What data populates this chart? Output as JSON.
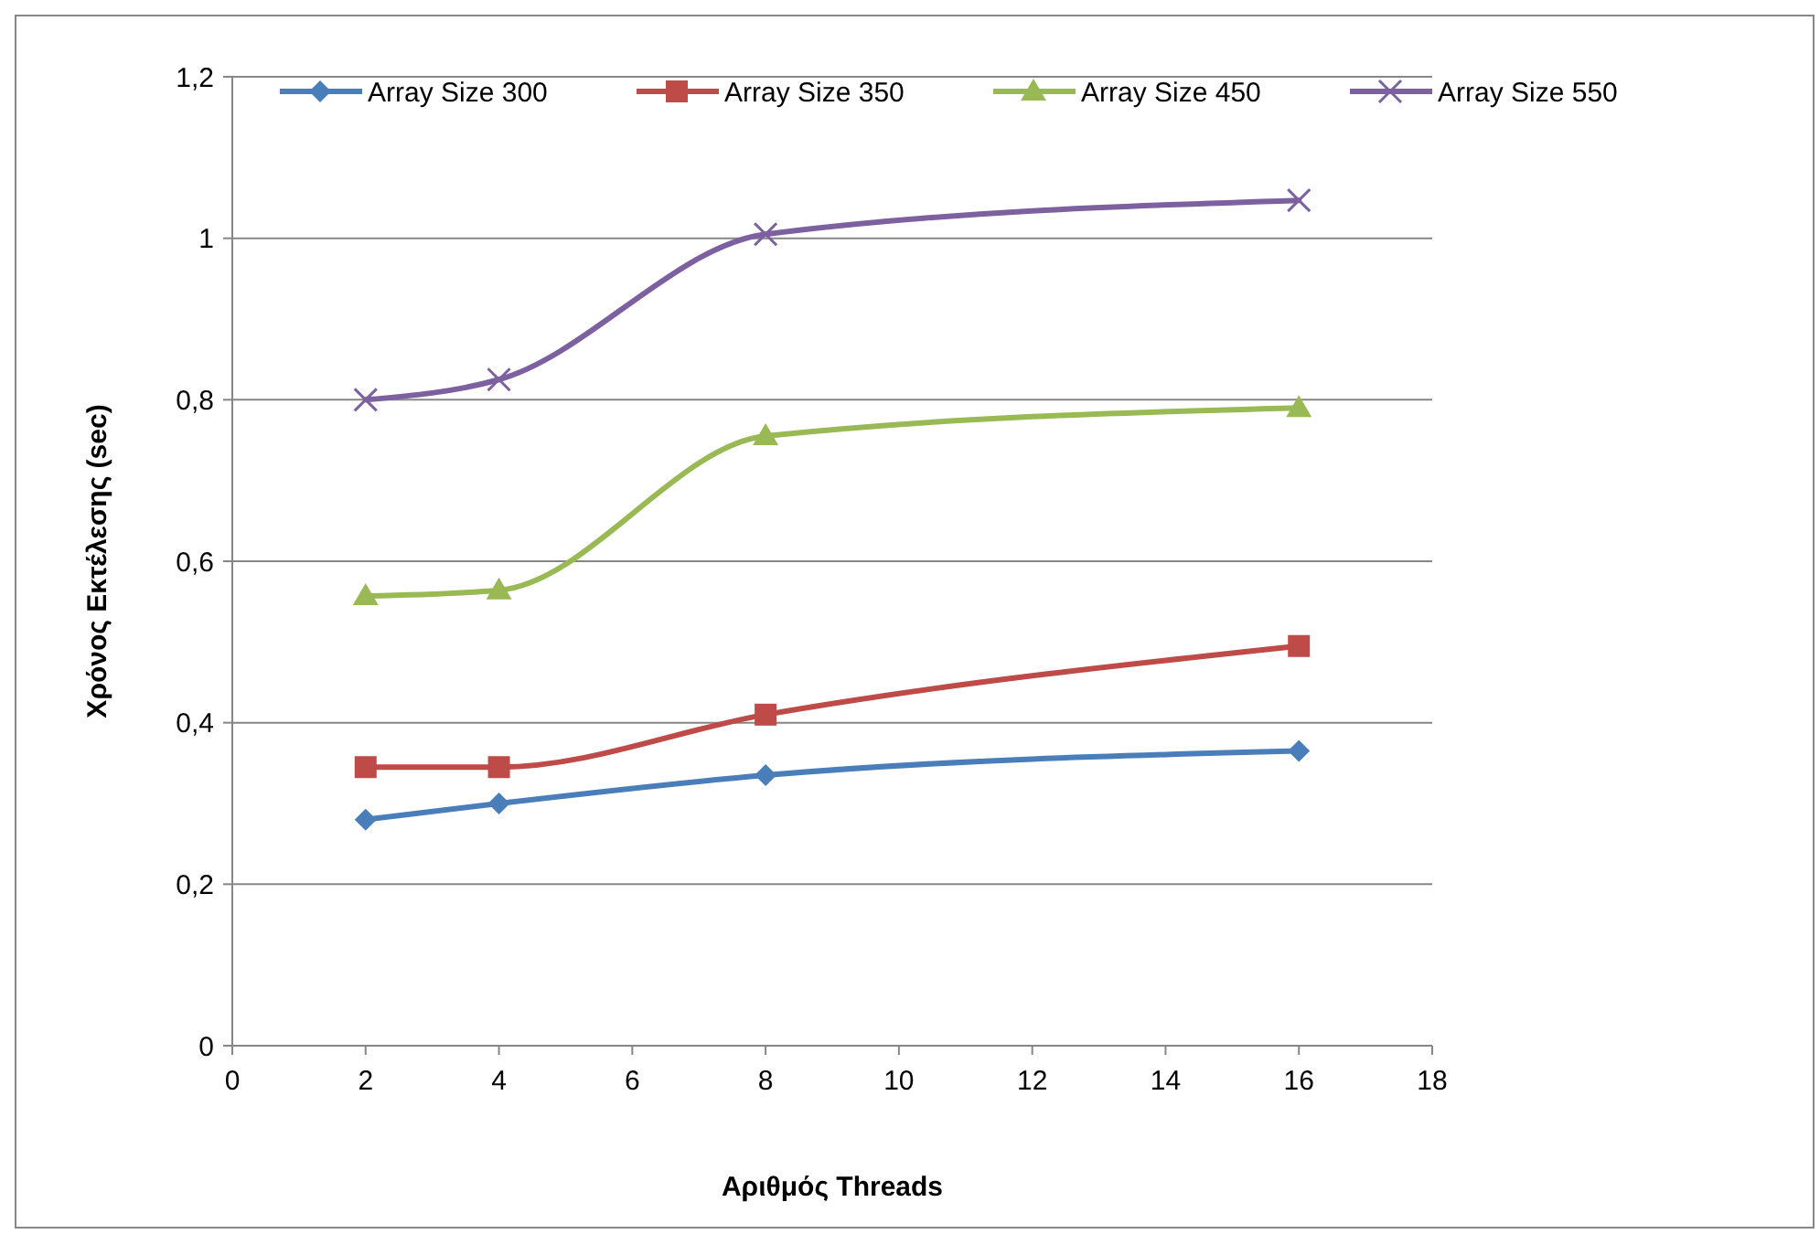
{
  "chart_data": {
    "type": "line",
    "xlabel": "Αριθμός Threads",
    "ylabel": "Χρόνος Εκτέλεσης (sec)",
    "x": [
      2,
      4,
      8,
      16
    ],
    "series": [
      {
        "name": "Array Size 300",
        "color": "#4a7ebb",
        "marker": "diamond",
        "values": [
          0.28,
          0.3,
          0.335,
          0.365
        ]
      },
      {
        "name": "Array Size 350",
        "color": "#be4b48",
        "marker": "square",
        "values": [
          0.345,
          0.345,
          0.41,
          0.495
        ]
      },
      {
        "name": "Array Size 450",
        "color": "#98b954",
        "marker": "triangle",
        "values": [
          0.557,
          0.564,
          0.755,
          0.79
        ]
      },
      {
        "name": "Array Size 550",
        "color": "#7d60a0",
        "marker": "cross",
        "values": [
          0.8,
          0.825,
          1.005,
          1.047
        ]
      }
    ],
    "xlim": [
      0,
      18
    ],
    "xticks": [
      0,
      2,
      4,
      6,
      8,
      10,
      12,
      14,
      16,
      18
    ],
    "ylim": [
      0,
      1.2
    ],
    "yticks": [
      0,
      {
        "value": 0.2,
        "label": "0,2"
      },
      {
        "value": 0.4,
        "label": "0,4"
      },
      {
        "value": 0.6,
        "label": "0,6"
      },
      {
        "value": 0.8,
        "label": "0,8"
      },
      1,
      {
        "value": 1.2,
        "label": "1,2"
      }
    ],
    "grid": "y",
    "legend": "top"
  }
}
